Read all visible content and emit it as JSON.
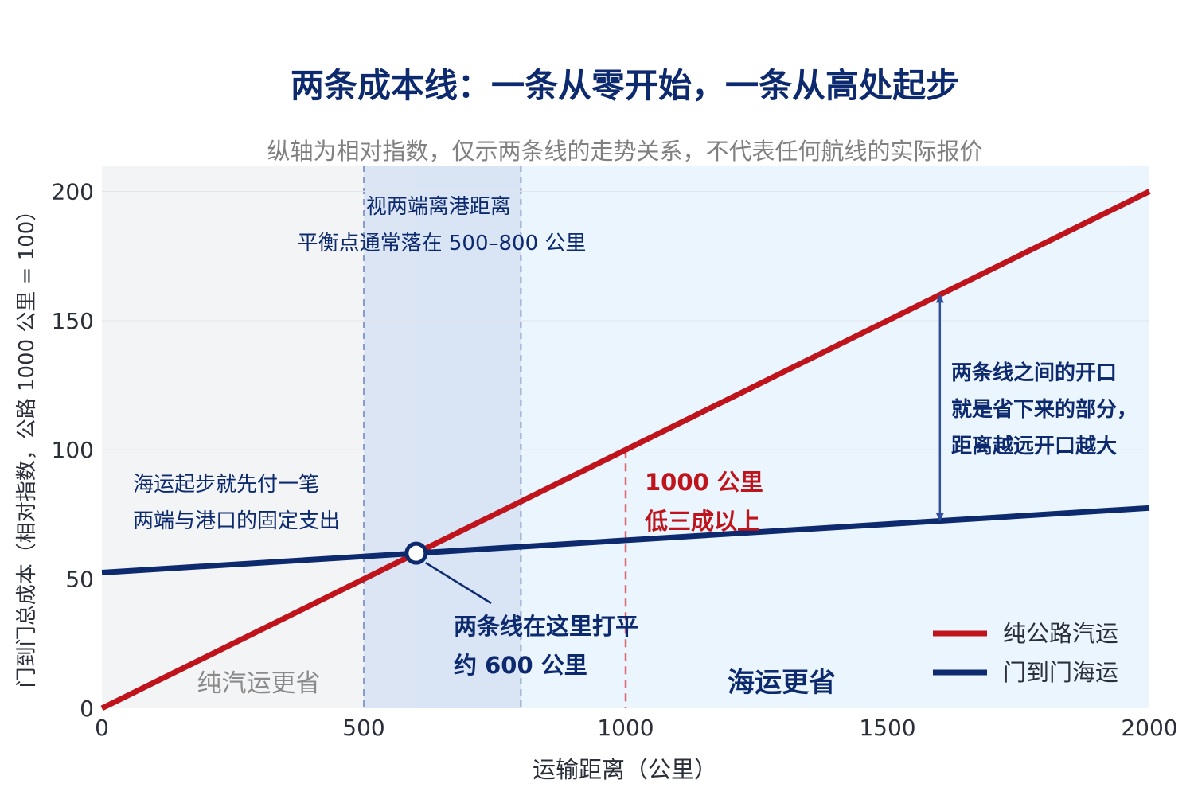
{
  "chart_data": {
    "type": "line",
    "title": "两条成本线：一条从零开始，一条从高处起步",
    "subtitle": "纵轴为相对指数，仅示两条线的走势关系，不代表任何航线的实际报价",
    "xlabel": "运输距离（公里）",
    "ylabel": "门到门总成本（相对指数，公路 1000 公里 = 100）",
    "xlim": [
      0,
      2000
    ],
    "ylim": [
      0,
      210
    ],
    "xticks": [
      "0",
      "500",
      "1000",
      "1500",
      "2000"
    ],
    "yticks": [
      "0",
      "50",
      "100",
      "150",
      "200"
    ],
    "grid": true,
    "legend_position": "bottom-right",
    "series": [
      {
        "name": "纯公路汽运",
        "color": "#c0141c",
        "x": [
          0,
          2000
        ],
        "y": [
          0,
          200
        ]
      },
      {
        "name": "门到门海运",
        "color": "#0d2a6e",
        "x": [
          0,
          2000
        ],
        "y": [
          52.5,
          77.5
        ]
      }
    ],
    "regions": [
      {
        "label": "纯汽运更省",
        "x_range": [
          0,
          600
        ],
        "color": "#f3f4f6"
      },
      {
        "label": "海运更省",
        "x_range": [
          600,
          2000
        ],
        "color": "#eaf5fd"
      }
    ],
    "break_even_band": {
      "x_range": [
        500,
        800
      ],
      "color": "#d6e2f3"
    },
    "break_even_point": {
      "x": 600,
      "y": 60
    },
    "reference_x": 1000,
    "gap_arrow": {
      "x": 1600,
      "y_from": 72.5,
      "y_to": 160
    },
    "annotations": {
      "band_note": [
        "视两端离港距离",
        "平衡点通常落在 500–800 公里"
      ],
      "start_note": [
        "海运起步就先付一笔",
        "两端与港口的固定支出"
      ],
      "breakeven_note": [
        "两条线在这里打平",
        "约 600 公里"
      ],
      "thousand_note": [
        "1000 公里",
        "低三成以上"
      ],
      "gap_note": [
        "两条线之间的开口",
        "就是省下来的部分，",
        "距离越远开口越大"
      ]
    },
    "colors": {
      "title": "#0d2a6e",
      "subtitle": "#808080",
      "road": "#c0141c",
      "sea": "#0d2a6e",
      "band_border": "#8a9cc8",
      "ref_line": "#e06670",
      "arrow": "#2f4f9e",
      "grid": "#e2e5ea",
      "left_region_text": "#8a8a8a"
    }
  }
}
